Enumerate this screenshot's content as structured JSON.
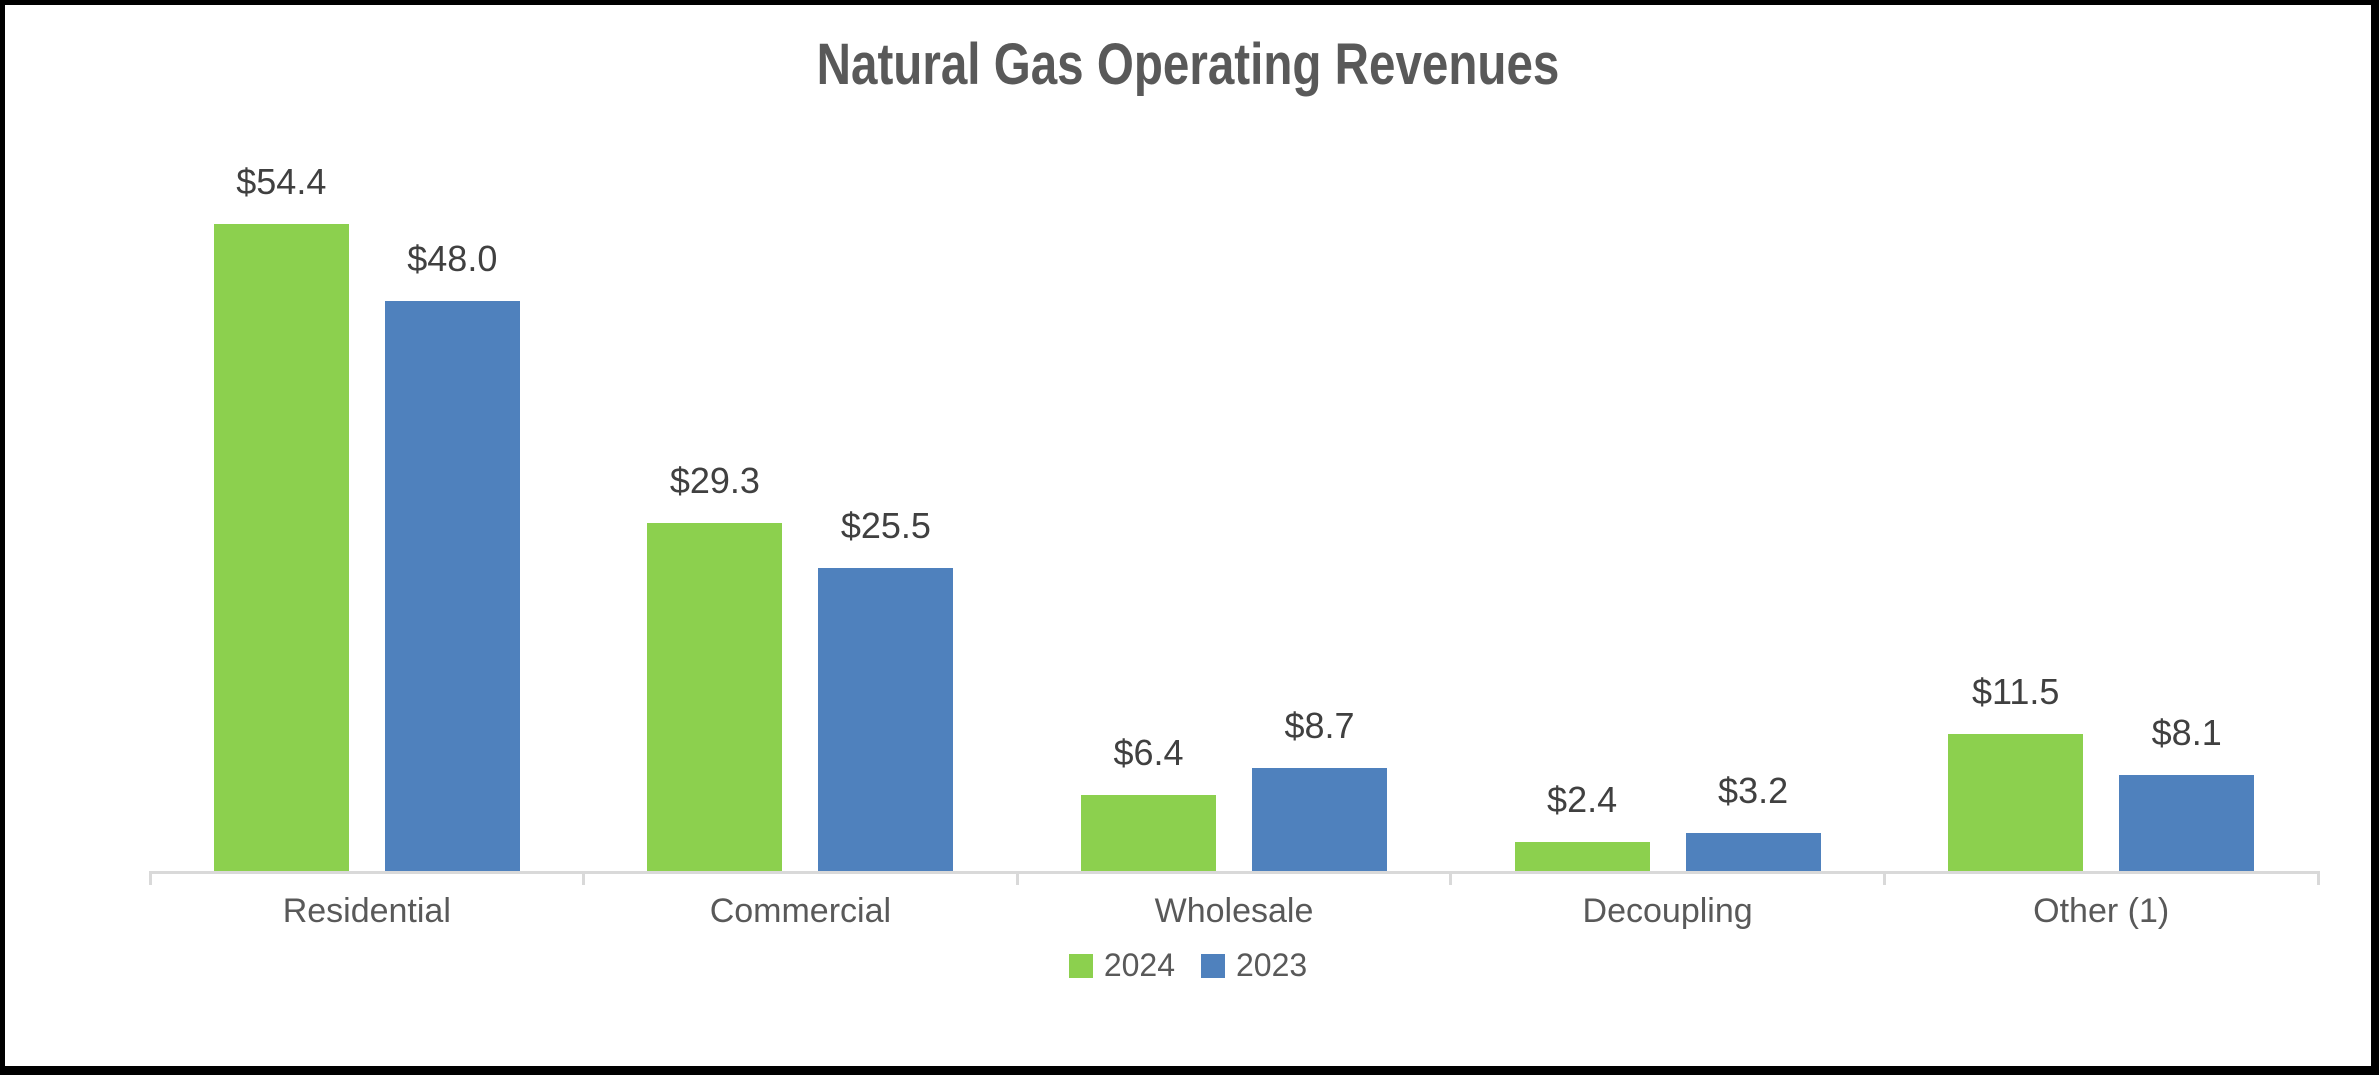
{
  "chart_data": {
    "type": "bar",
    "title": "Natural Gas Operating Revenues",
    "categories": [
      "Residential",
      "Commercial",
      "Wholesale",
      "Decoupling",
      "Other (1)"
    ],
    "series": [
      {
        "name": "2024",
        "color": "#8CD04E",
        "values": [
          54.4,
          29.3,
          6.4,
          2.4,
          11.5
        ],
        "labels": [
          "$54.4",
          "$29.3",
          "$6.4",
          "$2.4",
          "$11.5"
        ]
      },
      {
        "name": "2023",
        "color": "#4F81BD",
        "values": [
          48.0,
          25.5,
          8.7,
          3.2,
          8.1
        ],
        "labels": [
          "$48.0",
          "$25.5",
          "$8.7",
          "$3.2",
          "$8.1"
        ]
      }
    ],
    "xlabel": "",
    "ylabel": "",
    "ylim": [
      0,
      60
    ],
    "grid": false,
    "y_axis_visible": false,
    "legend_position": "bottom",
    "axis_color": "#D9D9D9",
    "value_label_color": "#404040",
    "text_color": "#595959"
  }
}
